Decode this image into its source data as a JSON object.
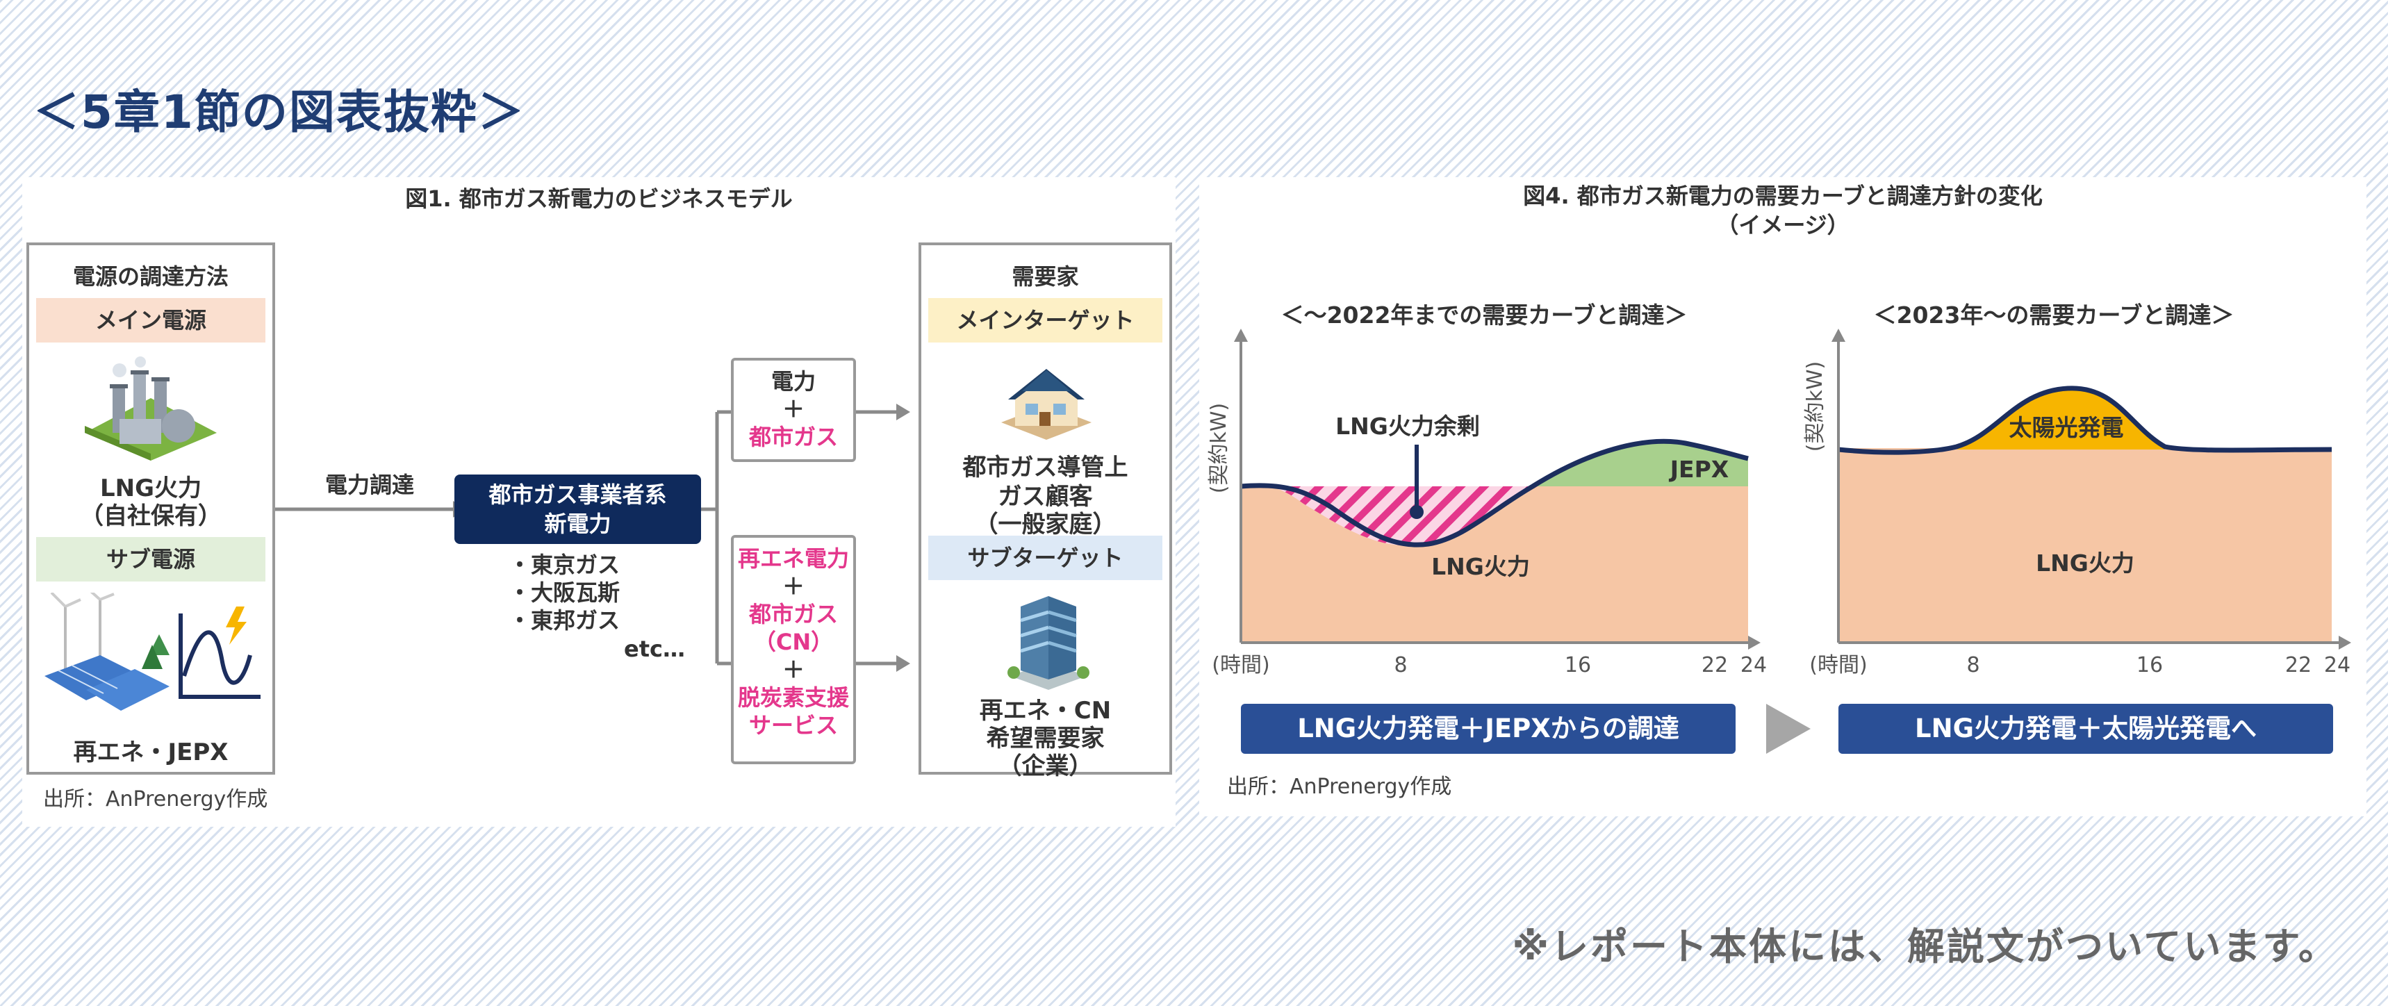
{
  "page_title": "＜5章1節の図表抜粋＞",
  "footer_note": "※レポート本体には、解説文がついています。",
  "fig1": {
    "title": "図1. 都市ガス新電力のビジネスモデル",
    "source": "出所：AnPrenergy作成",
    "supply": {
      "heading": "電源の調達方法",
      "main_band": "メイン電源",
      "main_name": "LNG火力",
      "main_sub": "（自社保有）",
      "sub_band": "サブ電源",
      "sub_name": "再エネ・JEPX"
    },
    "arrow_label": "電力調達",
    "center": {
      "line1": "都市ガス事業者系",
      "line2": "新電力",
      "members": [
        "・東京ガス",
        "・大阪瓦斯",
        "・東邦ガス"
      ],
      "etc": "etc…"
    },
    "offer1": {
      "line1": "電力",
      "plus": "＋",
      "line2": "都市ガス"
    },
    "offer2": {
      "line1": "再エネ電力",
      "plus1": "＋",
      "line2": "都市ガス",
      "line3": "（CN）",
      "plus2": "＋",
      "line4": "脱炭素支援",
      "line5": "サービス"
    },
    "demand": {
      "heading": "需要家",
      "main_band": "メインターゲット",
      "main_l1": "都市ガス導管上",
      "main_l2": "ガス顧客",
      "main_l3": "（一般家庭）",
      "sub_band": "サブターゲット",
      "sub_l1": "再エネ・CN",
      "sub_l2": "希望需要家",
      "sub_l3": "（企業）"
    }
  },
  "fig4": {
    "title_l1": "図4. 都市ガス新電力の需要カーブと調達方針の変化",
    "title_l2": "（イメージ）",
    "source": "出所：AnPrenergy作成",
    "left_title": "＜～2022年までの需要カーブと調達＞",
    "right_title": "＜2023年～の需要カーブと調達＞",
    "left_button": "LNG火力発電＋JEPXからの調達",
    "right_button": "LNG火力発電＋太陽光発電へ",
    "colors": {
      "lng": "#f6c6a5",
      "jepx": "#a8d08d",
      "solar": "#f7b500",
      "curve": "#1c2e5e",
      "hatch": "#e4378c"
    },
    "chart_data": [
      {
        "type": "area",
        "title": "＜～2022年までの需要カーブと調達＞",
        "ylabel": "(契約kW)",
        "x_ticks": [
          "(時間)",
          "8",
          "16",
          "22",
          "24"
        ],
        "series": [
          {
            "name": "LNG火力"
          },
          {
            "name": "LNG火力余剰"
          },
          {
            "name": "JEPX"
          }
        ]
      },
      {
        "type": "area",
        "title": "＜2023年～の需要カーブと調達＞",
        "ylabel": "(契約kW)",
        "x_ticks": [
          "(時間)",
          "8",
          "16",
          "22",
          "24"
        ],
        "series": [
          {
            "name": "LNG火力"
          },
          {
            "name": "太陽光発電"
          }
        ]
      }
    ]
  }
}
